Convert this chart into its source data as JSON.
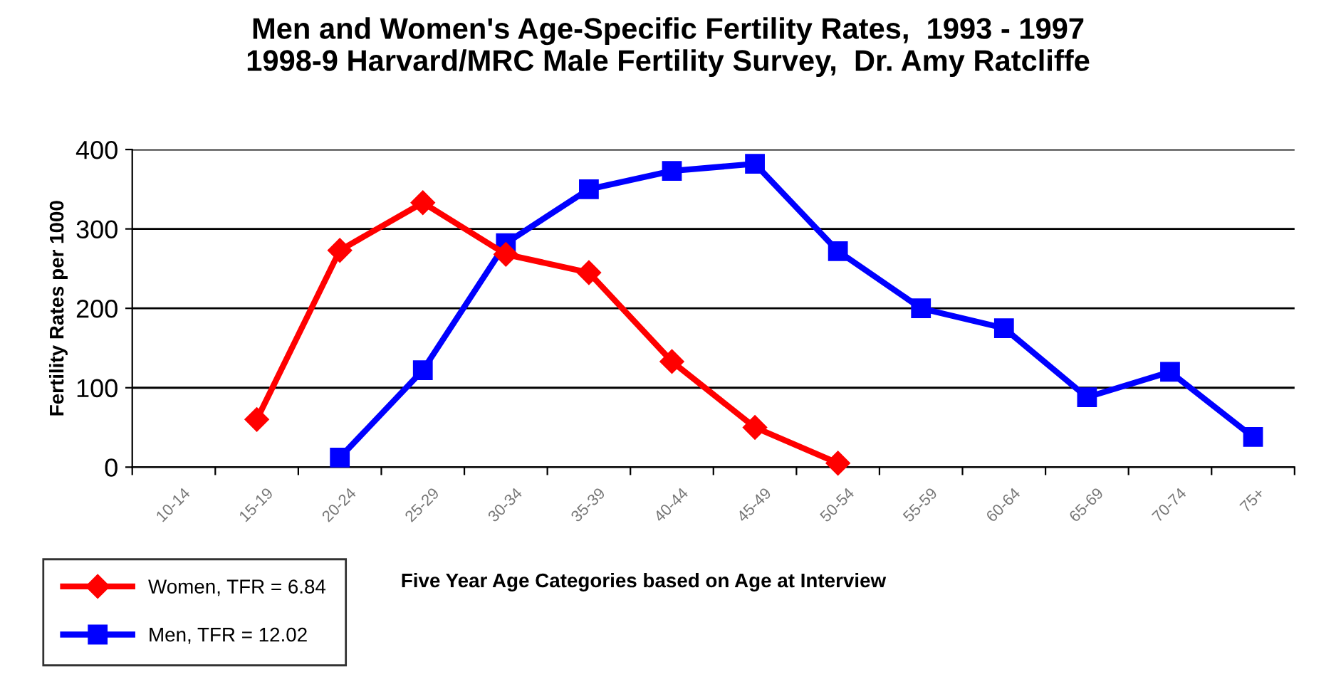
{
  "chart_data": {
    "type": "line",
    "title": "Men and Women's Age-Specific Fertility Rates,  1993 - 1997\n1998-9 Harvard/MRC Male Fertility Survey,  Dr. Amy Ratcliffe",
    "xlabel": "Five Year Age Categories based on Age at Interview",
    "ylabel": "Fertility Rates per 1000",
    "categories": [
      "10-14",
      "15-19",
      "20-24",
      "25-29",
      "30-34",
      "35-39",
      "40-44",
      "45-49",
      "50-54",
      "55-59",
      "60-64",
      "65-69",
      "70-74",
      "75+"
    ],
    "series": [
      {
        "name": "Women, TFR = 6.84",
        "color": "#ff0000",
        "marker": "diamond",
        "values": [
          null,
          60,
          273,
          333,
          268,
          245,
          133,
          50,
          5,
          null,
          null,
          null,
          null,
          null
        ]
      },
      {
        "name": "Men, TFR = 12.02",
        "color": "#0000ff",
        "marker": "square",
        "values": [
          null,
          null,
          12,
          122,
          282,
          350,
          373,
          382,
          272,
          200,
          175,
          88,
          120,
          38
        ]
      }
    ],
    "ylim": [
      0,
      400
    ],
    "yticks": [
      0,
      100,
      200,
      300,
      400
    ],
    "grid": "y",
    "legend": "bottom left",
    "line_style": "solid"
  }
}
